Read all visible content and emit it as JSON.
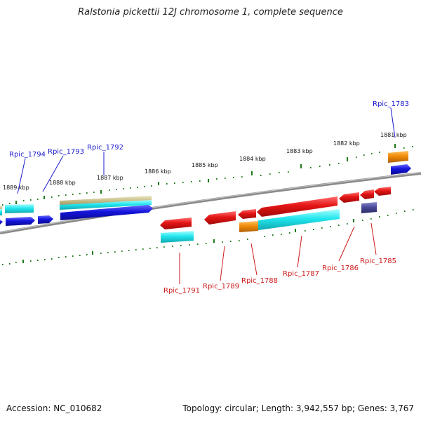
{
  "title": "Ralstonia pickettii 12J chromosome 1, complete sequence",
  "footer": {
    "accession": "Accession: NC_010682",
    "summary": "Topology: circular; Length: 3,942,557 bp; Genes: 3,767"
  },
  "colors": {
    "blue": "#1414dc",
    "red": "#e41414",
    "cyan": "#22e6ee",
    "orange": "#f08c0a",
    "khaki": "#c8c08c",
    "navy": "#4a4a9a",
    "tick_green": "#1e7a1e",
    "backbone": "#8a8a8a",
    "label_pos": "#1a1acc",
    "label_neg": "#cc1a1a"
  },
  "kbp_labels": [
    {
      "text": "1889 kbp"
    },
    {
      "text": "1888 kbp"
    },
    {
      "text": "1887 kbp"
    },
    {
      "text": "1886 kbp"
    },
    {
      "text": "1885 kbp"
    },
    {
      "text": "1884 kbp"
    },
    {
      "text": "1883 kbp"
    },
    {
      "text": "1882 kbp"
    },
    {
      "text": "1881 kbp"
    }
  ],
  "genes_forward_labeled": [
    "Rpic_1794",
    "Rpic_1793",
    "Rpic_1792",
    "Rpic_1783"
  ],
  "genes_reverse_labeled": [
    "Rpic_1791",
    "Rpic_1789",
    "Rpic_1788",
    "Rpic_1787",
    "Rpic_1786",
    "Rpic_1785"
  ]
}
